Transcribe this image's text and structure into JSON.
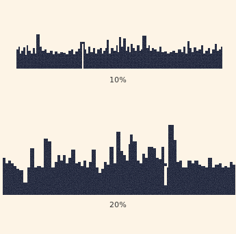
{
  "colors": {
    "background": "#fdf4e6",
    "skyline": "#1c2138",
    "caption": "#333333"
  },
  "panels": [
    {
      "caption": "10%"
    },
    {
      "caption": "20%"
    }
  ]
}
